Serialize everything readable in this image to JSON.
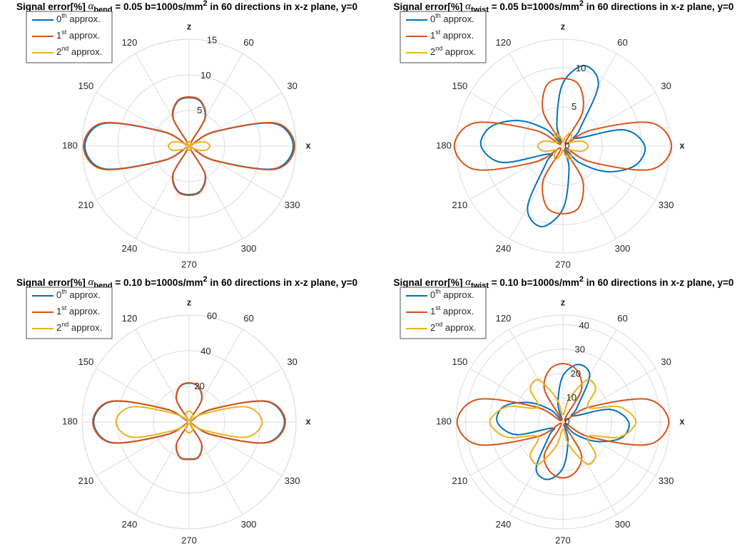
{
  "chart_data": [
    {
      "type": "polar",
      "title": [
        "Signal error[%] ",
        "α",
        "bend",
        " = 0.05 b=1000s/mm",
        "2",
        " in 60 directions in x-z plane, y=0"
      ],
      "theta": [
        0,
        15,
        30,
        45,
        60,
        75,
        90,
        105,
        120,
        135,
        150,
        165,
        180,
        195,
        210,
        225,
        240,
        255,
        270,
        285,
        300,
        315,
        330,
        345
      ],
      "rlim": [
        0,
        15
      ],
      "rticks": [
        5,
        10,
        15
      ],
      "thetaticks": [
        {
          "value": 0,
          "label": "x"
        },
        30,
        60,
        {
          "value": 90,
          "label": "z"
        },
        120,
        150,
        180,
        210,
        240,
        270,
        300,
        330
      ],
      "legend": "northwest",
      "series": [
        {
          "name": [
            "0",
            "th",
            " approx."
          ],
          "color": "#0072BD",
          "values": [
            14.6,
            12.3,
            3.9,
            0.3,
            4.4,
            6.4,
            6.8,
            6.4,
            4.4,
            0.3,
            3.9,
            12.3,
            14.6,
            12.3,
            3.9,
            0.3,
            4.4,
            6.4,
            6.8,
            6.4,
            4.4,
            0.3,
            3.9,
            12.3
          ]
        },
        {
          "name": [
            "1",
            "st",
            " approx."
          ],
          "color": "#D95319",
          "values": [
            14.8,
            12.5,
            4,
            0.3,
            4.5,
            6.5,
            6.9,
            6.5,
            4.5,
            0.3,
            4,
            12.5,
            14.8,
            12.5,
            4,
            0.3,
            4.5,
            6.5,
            6.9,
            6.5,
            4.5,
            0.3,
            4,
            12.5
          ]
        },
        {
          "name": [
            "2",
            "nd",
            " approx."
          ],
          "color": "#EDB120",
          "values": [
            2.9,
            2.3,
            0.8,
            0.1,
            0.4,
            0.6,
            0.6,
            0.6,
            0.4,
            0.1,
            0.8,
            2.3,
            2.9,
            2.3,
            0.8,
            0.1,
            0.4,
            0.6,
            0.6,
            0.6,
            0.4,
            0.1,
            0.8,
            2.3
          ]
        }
      ]
    },
    {
      "type": "polar",
      "title": [
        "Signal error[%] ",
        "α",
        "twist",
        " = 0.05 b=1000s/mm",
        "2",
        " in 60 directions in x-z plane, y=0"
      ],
      "theta": [
        0,
        15,
        30,
        45,
        60,
        75,
        90,
        105,
        120,
        135,
        150,
        165,
        180,
        195,
        210,
        225,
        240,
        255,
        270,
        285,
        300,
        315,
        330,
        345
      ],
      "rlim": [
        0,
        13.6
      ],
      "rticks": [
        0,
        5,
        10
      ],
      "thetaticks": [
        {
          "value": 0,
          "label": "x"
        },
        30,
        60,
        {
          "value": 90,
          "label": "z"
        },
        120,
        150,
        180,
        210,
        240,
        270,
        300,
        330
      ],
      "legend": "northwest",
      "series": [
        {
          "name": [
            "0",
            "th",
            " approx."
          ],
          "color": "#0072BD",
          "values": [
            10.4,
            8,
            2,
            3,
            9,
            10.6,
            8,
            3,
            0.5,
            3,
            6.5,
            9.5,
            10.4,
            8,
            2,
            3,
            9,
            10.6,
            8,
            3,
            0.5,
            3,
            6.5,
            9.5
          ]
        },
        {
          "name": [
            "1",
            "st",
            " approx."
          ],
          "color": "#D95319",
          "values": [
            13.8,
            11.5,
            4,
            0.4,
            5,
            8,
            8.6,
            8,
            5,
            0.4,
            4,
            11.5,
            13.8,
            11.5,
            4,
            0.4,
            5,
            8,
            8.6,
            8,
            5,
            0.4,
            4,
            11.5
          ]
        },
        {
          "name": [
            "2",
            "nd",
            " approx."
          ],
          "color": "#EDB120",
          "values": [
            3.2,
            2.5,
            1,
            1.5,
            2,
            1.2,
            0.5,
            1.2,
            2,
            1.5,
            1,
            2.5,
            3.2,
            2.5,
            1,
            1.5,
            2,
            1.2,
            0.5,
            1.2,
            2,
            1.5,
            1,
            2.5
          ]
        }
      ]
    },
    {
      "type": "polar",
      "title": [
        "Signal error[%] ",
        "α",
        "bend",
        " = 0.10 b=1000s/mm",
        "2",
        " in 60 directions in x-z plane, y=0"
      ],
      "theta": [
        0,
        15,
        30,
        45,
        60,
        75,
        90,
        105,
        120,
        135,
        150,
        165,
        180,
        195,
        210,
        225,
        240,
        255,
        270,
        285,
        300,
        315,
        330,
        345
      ],
      "rlim": [
        0,
        60
      ],
      "rticks": [
        20,
        40,
        60
      ],
      "thetaticks": [
        {
          "value": 0,
          "label": "x"
        },
        30,
        60,
        {
          "value": 90,
          "label": "z"
        },
        120,
        150,
        180,
        210,
        240,
        270,
        300,
        330
      ],
      "legend": "northwest",
      "series": [
        {
          "name": [
            "0",
            "th",
            " approx."
          ],
          "color": "#0072BD",
          "values": [
            53.5,
            44.6,
            13.8,
            1,
            13.8,
            20.3,
            21.8,
            20.3,
            13.8,
            1,
            13.8,
            44.6,
            53.5,
            44.6,
            13.8,
            1,
            13.8,
            20.3,
            20.8,
            20.3,
            13.8,
            1,
            13.8,
            44.6
          ]
        },
        {
          "name": [
            "1",
            "st",
            " approx."
          ],
          "color": "#D95319",
          "values": [
            54,
            45,
            14,
            1,
            14,
            20.5,
            22,
            20.5,
            14,
            1,
            14,
            45,
            54,
            45,
            14,
            1,
            14,
            20.5,
            21,
            20.5,
            14,
            1,
            14,
            45
          ]
        },
        {
          "name": [
            "2",
            "nd",
            " approx."
          ],
          "color": "#EDB120",
          "values": [
            41,
            33,
            9,
            1,
            4,
            5.5,
            6,
            5.5,
            4,
            1,
            9,
            33,
            41,
            33,
            9,
            1,
            4,
            5.5,
            6,
            5.5,
            4,
            1,
            9,
            33
          ]
        }
      ]
    },
    {
      "type": "polar",
      "title": [
        "Signal error[%] ",
        "α",
        "twist",
        " = 0.10 b=1000s/mm",
        "2",
        " in 60 directions in x-z plane, y=0"
      ],
      "theta": [
        0,
        15,
        30,
        45,
        60,
        75,
        90,
        105,
        120,
        135,
        150,
        165,
        180,
        195,
        210,
        225,
        240,
        255,
        270,
        285,
        300,
        315,
        330,
        345
      ],
      "rlim": [
        0,
        44
      ],
      "rticks": [
        0,
        10,
        20,
        30,
        40
      ],
      "thetaticks": [
        {
          "value": 0,
          "label": "x"
        },
        30,
        60,
        {
          "value": 90,
          "label": "z"
        },
        120,
        150,
        180,
        210,
        240,
        270,
        300,
        330
      ],
      "legend": "northwest",
      "series": [
        {
          "name": [
            "0",
            "th",
            " approx."
          ],
          "color": "#0072BD",
          "values": [
            27,
            20,
            5,
            8,
            22,
            24.5,
            19,
            8,
            1,
            7,
            16,
            25,
            27,
            20,
            5,
            8,
            22,
            24.5,
            19,
            8,
            1,
            7,
            16,
            25
          ]
        },
        {
          "name": [
            "1",
            "st",
            " approx."
          ],
          "color": "#D95319",
          "values": [
            43.5,
            36,
            12,
            1,
            15,
            22,
            24,
            22,
            15,
            1,
            12,
            36,
            43.5,
            36,
            12,
            1,
            15,
            21,
            23,
            21,
            15,
            1,
            12,
            36
          ]
        },
        {
          "name": [
            "2",
            "nd",
            " approx."
          ],
          "color": "#EDB120",
          "values": [
            30,
            24,
            12,
            19,
            20,
            10,
            3,
            10,
            20,
            19,
            12,
            24,
            30,
            24,
            12,
            19,
            20,
            10,
            3,
            10,
            20,
            19,
            12,
            24
          ]
        }
      ]
    }
  ]
}
